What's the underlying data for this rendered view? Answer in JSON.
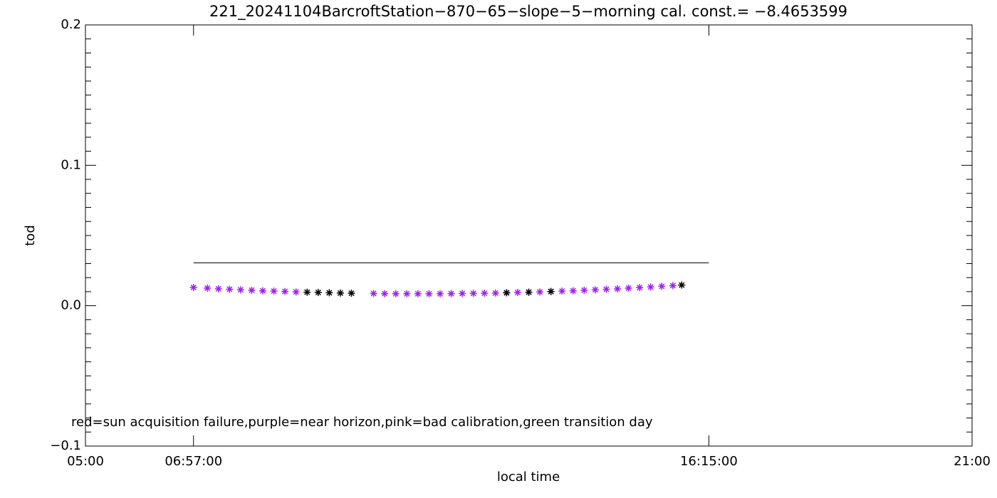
{
  "chart_data": {
    "type": "scatter",
    "title": "221_20241104BarcroftStation−870−65−slope−5−morning cal. const.= −8.4653599",
    "x_label": "local time",
    "y_label": "tod",
    "annotation": "red=sun acquisition failure,purple=near horizon,pink=bad calibration,green transition day",
    "xlim": [
      5,
      21
    ],
    "xticks": [
      {
        "value": 5,
        "label": "05:00"
      },
      {
        "value": 6.95,
        "label": "06:57:00"
      },
      {
        "value": 16.25,
        "label": "16:15:00"
      },
      {
        "value": 21,
        "label": "21:00"
      }
    ],
    "ylim": [
      -0.1,
      0.2
    ],
    "yticks": [
      {
        "value": -0.1,
        "label": "−0.1"
      },
      {
        "value": 0,
        "label": "0.0"
      },
      0.1,
      0.2
    ],
    "reference_line": {
      "x": [
        6.95,
        16.25
      ],
      "y": 0.0305,
      "color": "#000000"
    },
    "series": [
      {
        "color": "#a020f0",
        "x": [
          6.95,
          7.2,
          7.4,
          7.6,
          7.8,
          8.0,
          8.2,
          8.4,
          8.6,
          8.8,
          10.2,
          10.4,
          10.6,
          10.8,
          11.0,
          11.2,
          11.4,
          11.6,
          11.8,
          12.0,
          12.2,
          12.4,
          12.6,
          12.8,
          13.0,
          13.2,
          13.4,
          13.6,
          13.8,
          14.0,
          14.2,
          14.4,
          14.6,
          14.8,
          15.0,
          15.2,
          15.4,
          15.6
        ],
        "values": [
          0.013,
          0.0125,
          0.012,
          0.0117,
          0.0113,
          0.011,
          0.0106,
          0.0104,
          0.0101,
          0.0098,
          0.0087,
          0.0086,
          0.0085,
          0.0085,
          0.0085,
          0.0085,
          0.0085,
          0.0086,
          0.0087,
          0.0088,
          0.0089,
          0.009,
          0.0092,
          0.0094,
          0.0096,
          0.0098,
          0.0101,
          0.0104,
          0.0106,
          0.011,
          0.0113,
          0.0117,
          0.012,
          0.0125,
          0.0129,
          0.0133,
          0.0138,
          0.0143
        ]
      },
      {
        "color": "#000000",
        "x": [
          9.0,
          9.2,
          9.4,
          9.6,
          9.8,
          12.6,
          13.0,
          13.4,
          15.76
        ],
        "values": [
          0.0096,
          0.0094,
          0.0092,
          0.009,
          0.0089,
          0.0092,
          0.0096,
          0.0101,
          0.0147
        ]
      }
    ]
  }
}
